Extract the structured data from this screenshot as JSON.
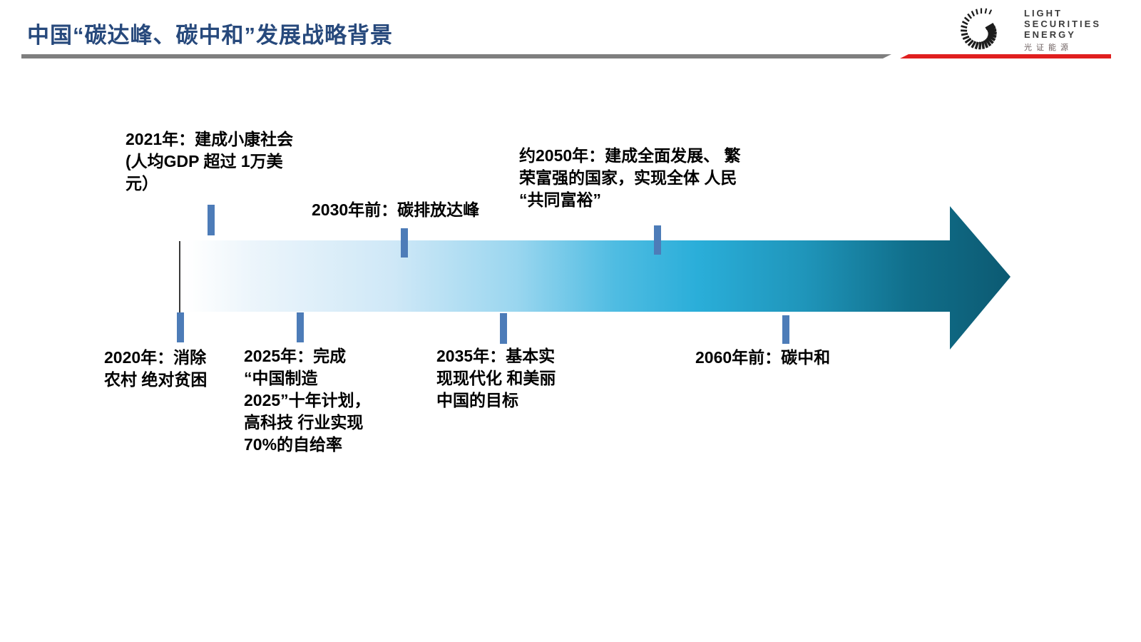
{
  "title": "中国“碳达峰、碳中和”发展战略背景",
  "logo": {
    "line1": "LIGHT",
    "line2": "SECURITIES",
    "line3": "ENERGY",
    "cn": "光证能源"
  },
  "timeline": {
    "milestones": [
      {
        "id": "2021",
        "position": "above",
        "text": "2021年：建成小康社会\n(人均GDP 超过 1万美\n元）"
      },
      {
        "id": "2030",
        "position": "above",
        "text": "2030年前：碳排放达峰"
      },
      {
        "id": "2050",
        "position": "above",
        "text": "约2050年：建成全面发展、 繁\n荣富强的国家，实现全体 人民\n“共同富裕”"
      },
      {
        "id": "2020",
        "position": "below",
        "text": "2020年：消除\n农村 绝对贫困"
      },
      {
        "id": "2025",
        "position": "below",
        "text": "2025年：完成\n“中国制造\n2025”十年计划，\n高科技 行业实现\n70%的自给率"
      },
      {
        "id": "2035",
        "position": "below",
        "text": "2035年：基本实\n现现代化 和美丽\n中国的目标"
      },
      {
        "id": "2060",
        "position": "below",
        "text": "2060年前：碳中和"
      }
    ]
  },
  "colors": {
    "title_blue": "#27497c",
    "tick_blue": "#4d7cb8",
    "accent_red": "#e01f1f",
    "divider_gray": "#7f7f7f",
    "arrow_start": "#ffffff",
    "arrow_mid": "#2aaed9",
    "arrow_end": "#0c5a72"
  }
}
